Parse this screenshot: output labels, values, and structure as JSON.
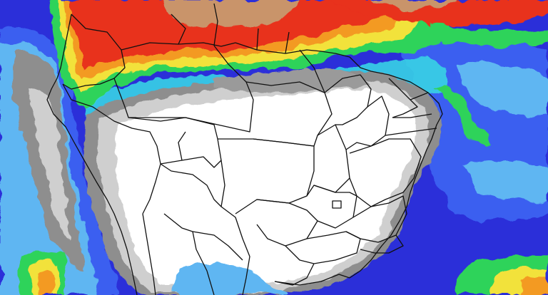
{
  "map": {
    "projection": "geographic",
    "field_colors": {
      "deep_blue": "#2b2fd9",
      "royal_blue": "#3b5ff0",
      "light_blue": "#5fb6f2",
      "cyan": "#39d3e6",
      "green": "#2fd35a",
      "yellow": "#f2e23a",
      "orange": "#f39a24",
      "red": "#e8301f",
      "brown": "#c9946a",
      "gray_dark": "#8e8e8e",
      "gray_light": "#cfcfcf",
      "white": "#ffffff"
    },
    "border_color": "#111111"
  }
}
